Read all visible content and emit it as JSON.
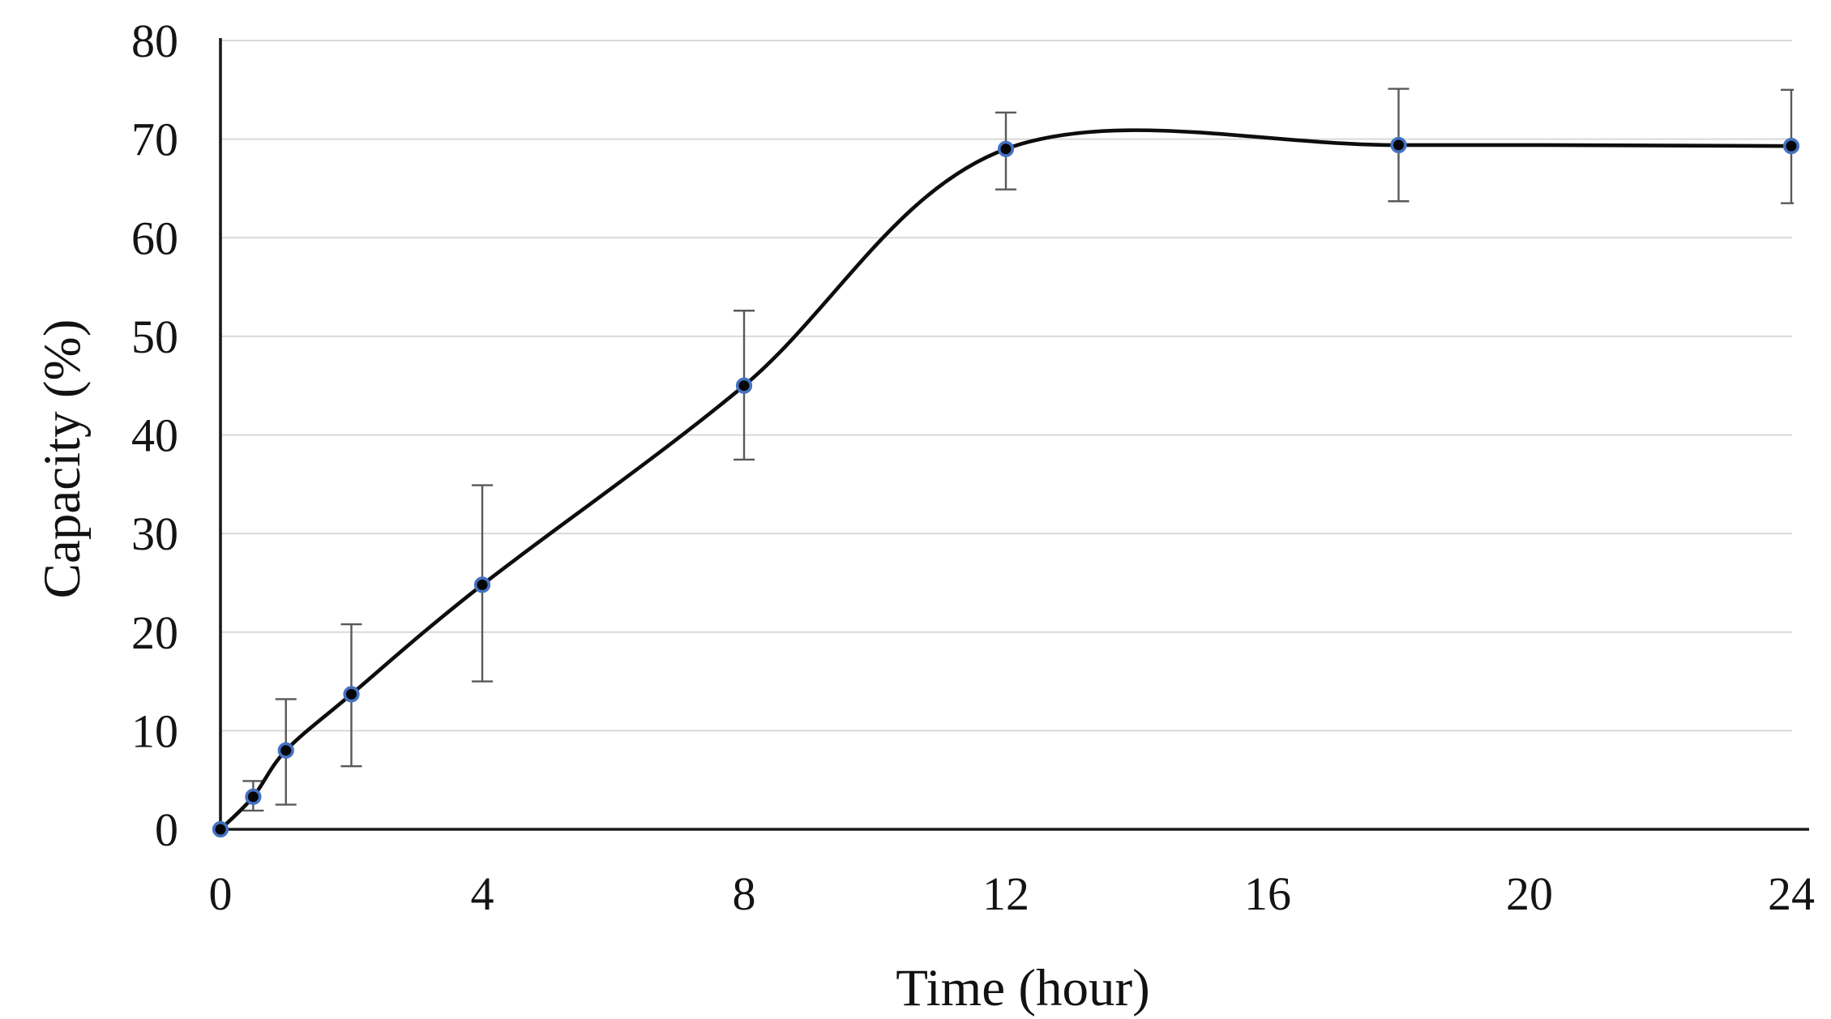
{
  "chart_data": {
    "type": "line",
    "title": "",
    "xlabel": "Time (hour)",
    "ylabel": "Capacity (%)",
    "series": [
      {
        "name": "Capacity",
        "x": [
          0,
          0.5,
          1,
          2,
          4,
          8,
          12,
          18,
          24
        ],
        "y": [
          0,
          3.3,
          8.0,
          13.7,
          24.8,
          45.0,
          69.0,
          69.4,
          69.3
        ],
        "error_plus": [
          0,
          1.6,
          5.2,
          7.1,
          10.1,
          7.6,
          3.7,
          5.7,
          5.7
        ],
        "error_minus": [
          0,
          1.4,
          5.5,
          7.3,
          9.8,
          7.5,
          4.1,
          5.7,
          5.8
        ]
      }
    ],
    "x_ticks": [
      0,
      4,
      8,
      12,
      16,
      20,
      24
    ],
    "y_ticks": [
      0,
      10,
      20,
      30,
      40,
      50,
      60,
      70,
      80
    ],
    "xlim": [
      0,
      24
    ],
    "ylim": [
      0,
      80
    ],
    "grid": "horizontal-only",
    "legend": "none",
    "smooth": true,
    "colors": {
      "line": "#0d0d0d",
      "marker_fill": "#060606",
      "marker_ring": "#4472c4",
      "error_bar": "#595959",
      "gridline": "#d9d9d9",
      "axis": "#1a1a1a",
      "background": "#ffffff"
    }
  }
}
